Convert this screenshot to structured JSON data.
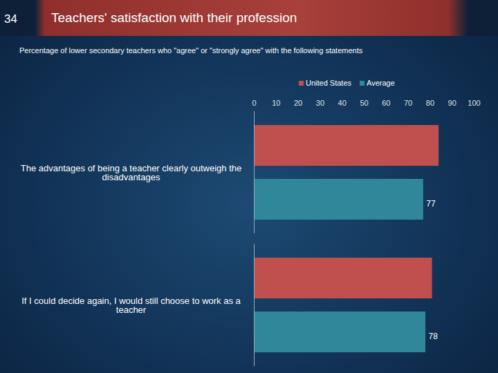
{
  "chart_data": {
    "type": "bar",
    "orientation": "horizontal",
    "slide_number": "34",
    "title": "Teachers' satisfaction with their profession",
    "subtitle": "Percentage of lower secondary teachers who \"agree\" or \"strongly agree\" with the following statements",
    "categories": [
      "The advantages of being a teacher clearly outweigh the disadvantages",
      "If I could decide again, I would still choose to work as a teacher"
    ],
    "series": [
      {
        "name": "United States",
        "color": "#c0504d",
        "values": [
          84,
          81
        ],
        "data_labels": false
      },
      {
        "name": "Average",
        "color": "#31879a",
        "values": [
          77,
          78
        ],
        "data_labels": true
      }
    ],
    "xlim": [
      0,
      100
    ],
    "xticks": [
      0,
      10,
      20,
      30,
      40,
      50,
      60,
      70,
      80,
      90,
      100
    ],
    "grid": false,
    "legend": "top"
  }
}
